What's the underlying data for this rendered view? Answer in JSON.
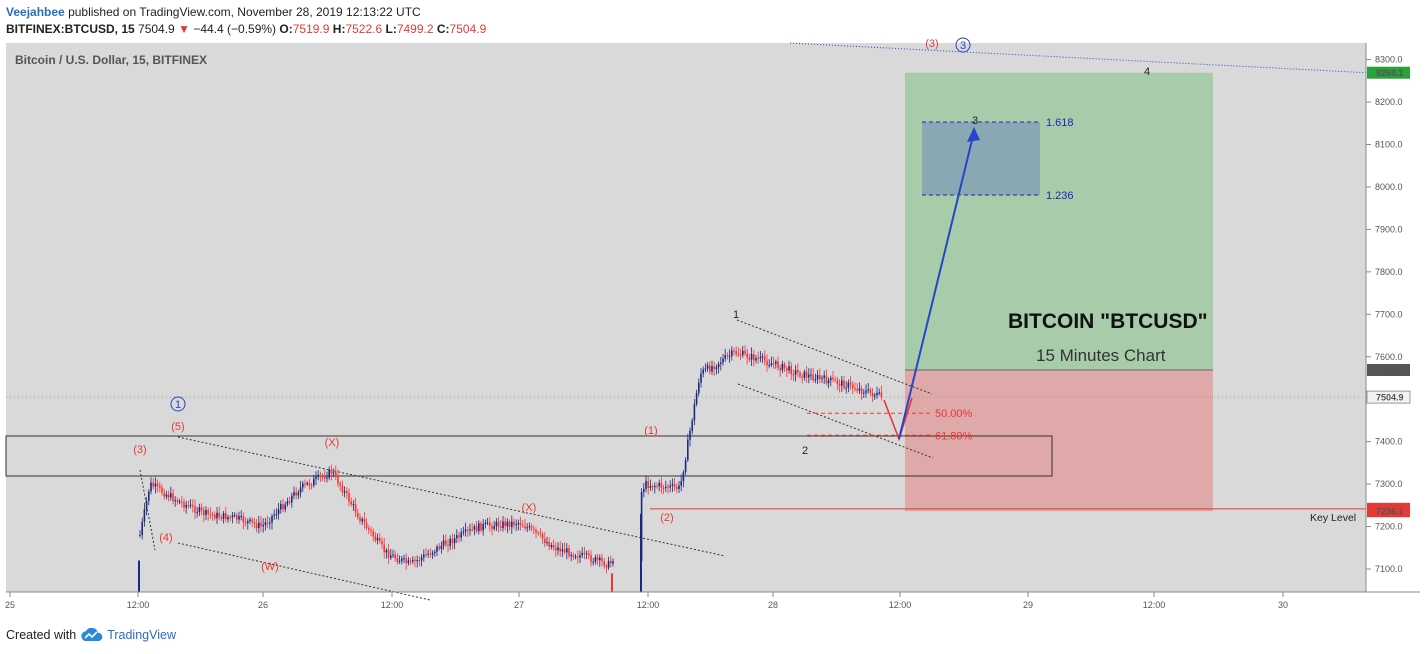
{
  "header": {
    "author": "Veejahbee",
    "published_text": "published on TradingView.com, November 28, 2019 12:13:22 UTC",
    "symbol": "BITFINEX:BTCUSD, 15",
    "last": "7504.9",
    "change_arrow": "▼",
    "change": "−44.4 (−0.59%)",
    "o_label": "O:",
    "o": "7519.9",
    "h_label": "H:",
    "h": "7522.6",
    "l_label": "L:",
    "l": "7499.2",
    "c_label": "C:",
    "c": "7504.9"
  },
  "footer": {
    "created_with": "Created with",
    "brand": "TradingView",
    "logo_icon": "tradingview-cloud-icon"
  },
  "colors": {
    "pane_bg": "#d9d9d9",
    "up_candle": "#1a2a80",
    "down_candle": "#ff3030",
    "profit_zone": "#a8ccaa",
    "loss_zone": "#e0a9a9",
    "target_box": "#8aa7b4",
    "projection_arrow": "#2546c8",
    "accent_red": "#e53935"
  },
  "chart_data": {
    "type": "line",
    "title": "Bitcoin / U.S. Dollar, 15, BITFINEX",
    "series": [
      {
        "x": [
          "25 12:00",
          "25 15:00",
          "25 18:00",
          "25 21:00",
          "26 00:00",
          "26 03:00",
          "26 06:00",
          "26 09:00",
          "26 12:00",
          "26 15:00",
          "26 18:00",
          "26 21:00",
          "27 00:00",
          "27 03:00",
          "27 06:00",
          "27 09:00",
          "27 12:00",
          "27 15:00",
          "27 18:00",
          "27 21:00",
          "28 00:00",
          "28 03:00",
          "28 06:00",
          "28 09:00"
        ],
        "y": [
          7180,
          7300,
          7260,
          7230,
          7220,
          7200,
          7290,
          7330,
          7220,
          7140,
          7110,
          7160,
          7200,
          7210,
          7150,
          7110,
          7300,
          7290,
          7560,
          7610,
          7590,
          7560,
          7535,
          7504.9
        ]
      }
    ],
    "x_ticks": [
      "25",
      "12:00",
      "26",
      "12:00",
      "27",
      "12:00",
      "28",
      "12:00",
      "29",
      "12:00",
      "30"
    ],
    "y_ticks": [
      "8300.0",
      "8200.0",
      "8100.0",
      "8000.0",
      "7900.0",
      "7800.0",
      "7700.0",
      "7600.0",
      "7500.0",
      "7400.0",
      "7300.0",
      "7200.0",
      "7100.0"
    ],
    "ylim": [
      7050,
      8340
    ],
    "price_tags": [
      {
        "label": "8269.1",
        "value": 8269.1,
        "color": "#2aa23c"
      },
      {
        "label": "7568.8",
        "value": 7568.8,
        "color": "#555555"
      },
      {
        "label": "7504.9",
        "value": 7504.9,
        "color": "#f2f2f2"
      },
      {
        "label": "7241.7",
        "value": 7241.7,
        "color": "#e53935"
      },
      {
        "label": "7236.1",
        "value": 7236.1,
        "color": "#e53935"
      }
    ],
    "fib_levels": [
      {
        "label": "50.00%",
        "value": 7467
      },
      {
        "label": "61.80%",
        "value": 7415
      }
    ],
    "extension_levels": [
      {
        "label": "1.618",
        "value": 8153
      },
      {
        "label": "1.236",
        "value": 7981
      }
    ],
    "zones": {
      "profit": {
        "top": 8269.1,
        "bottom": 7568.8
      },
      "loss": {
        "top": 7568.8,
        "bottom": 7236.1
      },
      "key_level": 7241.7
    },
    "wave_labels_red": [
      "(3)",
      "(5)",
      "(4)",
      "(X)",
      "(W)",
      "(X)",
      "(1)",
      "(2)",
      "(3)"
    ],
    "wave_labels_blue_circled": [
      "1",
      "3"
    ],
    "wave_labels_black": [
      "1",
      "2",
      "3",
      "4"
    ],
    "annotations": {
      "title": "BITCOIN \"BTCUSD\"",
      "subtitle": "15 Minutes Chart",
      "key_level": "Key Level"
    }
  }
}
